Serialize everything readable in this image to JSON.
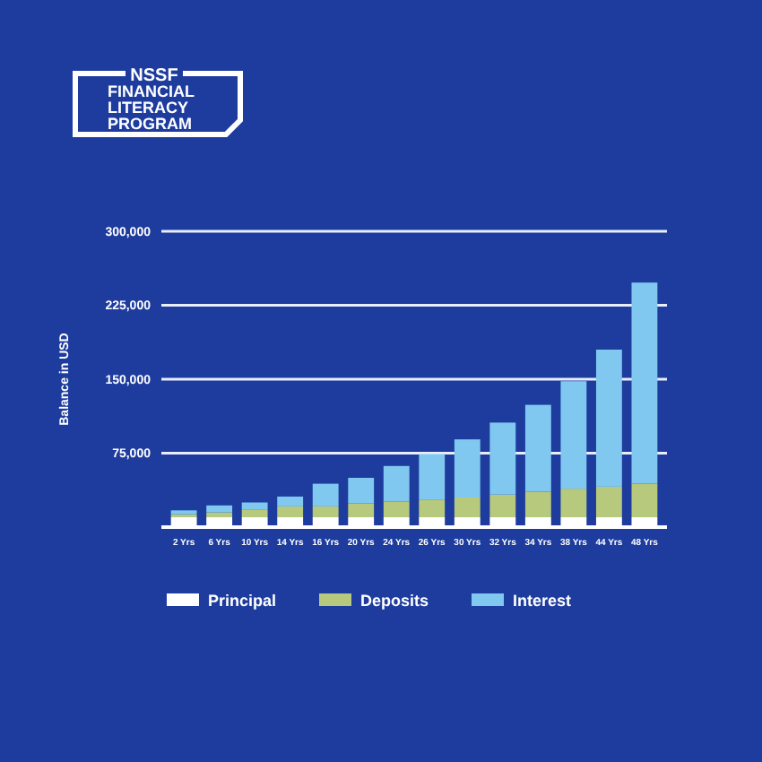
{
  "chart_data": {
    "type": "bar",
    "title": "NSSF FINANCIAL LITERACY PROGRAM",
    "ylabel": "Balance in USD",
    "categories": [
      "2 Yrs",
      "6 Yrs",
      "10 Yrs",
      "14 Yrs",
      "16 Yrs",
      "20 Yrs",
      "24 Yrs",
      "26 Yrs",
      "30 Yrs",
      "32 Yrs",
      "34 Yrs",
      "38 Yrs",
      "44 Yrs",
      "48 Yrs"
    ],
    "stacked": true,
    "series": [
      {
        "name": "Principal",
        "color": "#ffffff",
        "values": [
          10000,
          10000,
          10000,
          10000,
          10000,
          10000,
          10000,
          10000,
          10000,
          10000,
          10000,
          10000,
          10000,
          10000
        ]
      },
      {
        "name": "Deposits",
        "color": "#b7c97c",
        "values": [
          3000,
          5000,
          8000,
          11000,
          11000,
          14000,
          16000,
          18000,
          20000,
          23000,
          26000,
          29000,
          31000,
          34000
        ]
      },
      {
        "name": "Interest",
        "color": "#80c8f0",
        "values": [
          4000,
          7000,
          7000,
          10000,
          23000,
          26000,
          36000,
          46000,
          59000,
          73000,
          88000,
          109000,
          139000,
          204000
        ]
      }
    ],
    "ylim": [
      0,
      300000
    ],
    "yticks": [
      {
        "value": 75000,
        "label": "75,000"
      },
      {
        "value": 150000,
        "label": "150,000"
      },
      {
        "value": 225000,
        "label": "225,000"
      },
      {
        "value": 300000,
        "label": "300,000"
      }
    ],
    "grid": "y",
    "legend": "bottom"
  }
}
